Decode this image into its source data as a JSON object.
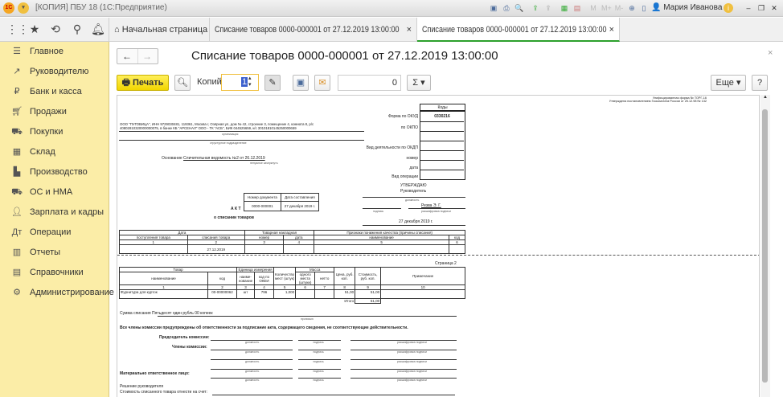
{
  "window": {
    "title": "[КОПИЯ] ПБУ 18  (1С:Предприятие)",
    "user": "Мария Иванова",
    "mem_buttons": [
      "M",
      "M+",
      "M-"
    ]
  },
  "tabs": [
    {
      "label": "Начальная страница"
    },
    {
      "label": "Списание товаров 0000-000001 от 27.12.2019 13:00:00"
    },
    {
      "label": "Списание товаров 0000-000001 от 27.12.2019 13:00:00",
      "active": true
    }
  ],
  "sidebar": {
    "items": [
      {
        "label": "Главное",
        "icon": "menu-icon"
      },
      {
        "label": "Руководителю",
        "icon": "chart-icon"
      },
      {
        "label": "Банк и касса",
        "icon": "ruble-icon"
      },
      {
        "label": "Продажи",
        "icon": "cart-icon"
      },
      {
        "label": "Покупки",
        "icon": "basket-icon"
      },
      {
        "label": "Склад",
        "icon": "warehouse-icon"
      },
      {
        "label": "Производство",
        "icon": "factory-icon"
      },
      {
        "label": "ОС и НМА",
        "icon": "truck-icon"
      },
      {
        "label": "Зарплата и кадры",
        "icon": "person-icon"
      },
      {
        "label": "Операции",
        "icon": "operations-icon"
      },
      {
        "label": "Отчеты",
        "icon": "report-icon"
      },
      {
        "label": "Справочники",
        "icon": "book-icon"
      },
      {
        "label": "Администрирование",
        "icon": "gear-icon"
      }
    ]
  },
  "form": {
    "title": "Списание товаров 0000-000001 от 27.12.2019 13:00:00",
    "print_label": "Печать",
    "copies_label": "Копий:",
    "copies_value": "1",
    "sum_value": "0",
    "sum_symbol": "Σ",
    "more_label": "Еще",
    "help_label": "?"
  },
  "doc": {
    "form_note1": "Унифицированная форма № ТОРГ-16",
    "form_note2": "Утверждена постановлением Госкомстата России от 25.12.98 № 132",
    "codes_label": "Коды",
    "okud_label": "Форма по ОКУД",
    "okud": "0330216",
    "okpo_label": "по ОКПО",
    "okdp_label": "Вид деятельности по ОКДП",
    "number_label": "номер",
    "date_label": "дата",
    "operation_label": "Вид операции",
    "org_line1": "ООО \"ПУГОВИЦА\", ИНН 9729030481, 119361, Москва г, Озёрная ул, дом № 42, строение 3, помещение 4, комната 8, р/с",
    "org_line2": "40802810320000000075, в банке КБ \"АРСЕНАЛ\" ООО - ТК \"АСБ\", БИК 044525659, к/с 30101810145250000659",
    "org_caption": "организация",
    "dept_caption": "структурное подразделение",
    "basis_label": "Основание",
    "basis": "Сличительная ведомость №2 от 26.12.2019",
    "basis_caption": "ненужное зачеркнуть",
    "act_label": "А К Т",
    "act_subtitle": "о списании товаров",
    "docnum_header": "Номер документа",
    "docdate_header": "Дата составления",
    "docnum": "0000-000001",
    "docdate": "27 декабря 2019 г.",
    "approve": "УТВЕРЖДАЮ",
    "head": "Руководитель",
    "position_caption": "должность",
    "signature_caption": "подпись",
    "signer": "Резва Э. Г.",
    "signer_caption": "расшифровка подписи",
    "approve_date": "27 декабря 2019 г.",
    "t1": {
      "h_date": "Дата",
      "h_invoice": "Товарная накладная",
      "h_reason": "Признаки понижения качества (причины списания)",
      "cols": [
        "поступления товара",
        "списания товара",
        "номер",
        "дата",
        "наименование",
        "код"
      ],
      "nums": [
        "1",
        "2",
        "3",
        "4",
        "5",
        "6"
      ],
      "row": [
        "",
        "27.12.2019",
        "",
        "",
        "",
        ""
      ]
    },
    "page2": "Страница 2",
    "t2": {
      "h_goods": "Товар",
      "h_unit": "Единица измерения",
      "h_qty": "Количество мест (штук)",
      "h_mass": "Масса",
      "h_price": "Цена, руб. коп.",
      "h_cost": "Стоимость, руб. коп.",
      "h_note": "Примечание",
      "cols": [
        "наименование",
        "код",
        "наиме-нование",
        "код по ОКЕИ",
        "одного места (штуки)",
        "нетто"
      ],
      "nums": [
        "1",
        "2",
        "3",
        "4",
        "5",
        "6",
        "7",
        "8",
        "9",
        "10"
      ],
      "row": [
        "Фурнитура для курток",
        "00-00000062",
        "шт",
        "796",
        "1,000",
        "",
        "",
        "51,00",
        "51,00",
        ""
      ],
      "total_label": "Итого",
      "total": "51,00"
    },
    "sum_label": "Сумма списания",
    "sum_words": "Пятьдесят один рубль 00 копеек",
    "sum_caption": "прописью",
    "warning": "Все члены комиссии предупреждены об ответственности за подписание акта, содержащего сведения, не соответствующие действительности.",
    "chair_label": "Председатель комиссии:",
    "members_label": "Члены комиссии:",
    "mol_label": "Материально ответственное лицо:",
    "decision": "Решение руководителя",
    "write_off": "Стоимость списанного товара отнести на счет"
  },
  "colors": {
    "sidebar": "#fbeda7",
    "print_button": "#f5dc10",
    "active_tab": "#2ca02c"
  }
}
